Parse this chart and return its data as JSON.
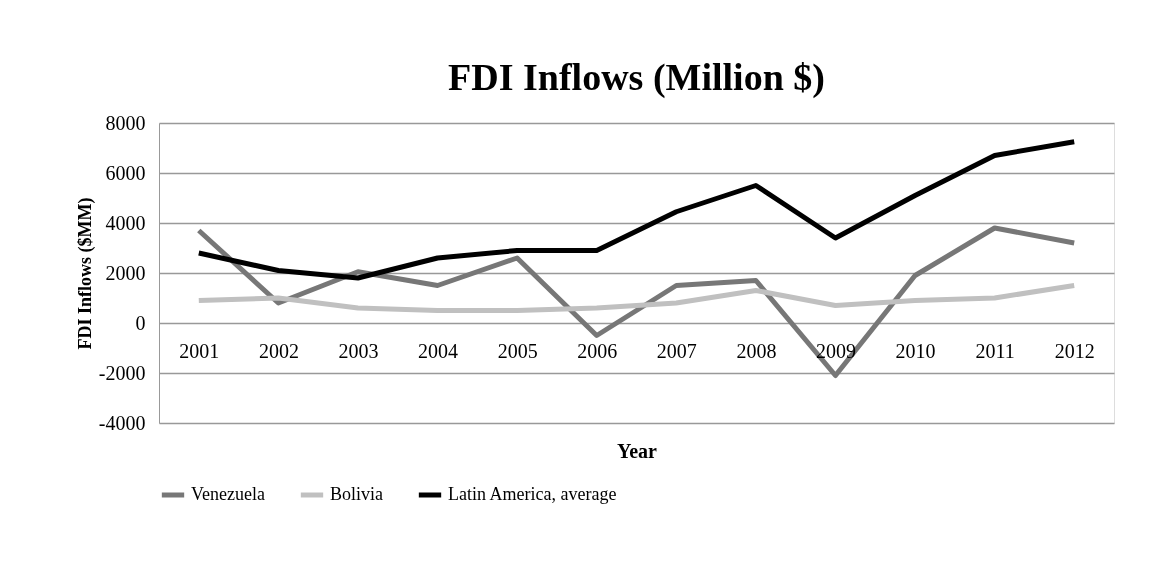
{
  "chart_data": {
    "type": "line",
    "title": "FDI Inflows (Million $)",
    "xlabel": "Year",
    "ylabel": "FDI Inflows ($MM)",
    "categories": [
      "2001",
      "2002",
      "2003",
      "2004",
      "2005",
      "2006",
      "2007",
      "2008",
      "2009",
      "2010",
      "2011",
      "2012"
    ],
    "series": [
      {
        "name": "Venezuela",
        "color": "#777777",
        "values": [
          3700,
          800,
          2050,
          1500,
          2600,
          -500,
          1500,
          1700,
          -2100,
          1900,
          3800,
          3200
        ]
      },
      {
        "name": "Bolivia",
        "color": "#c0c0c0",
        "values": [
          900,
          1000,
          600,
          500,
          500,
          600,
          800,
          1300,
          700,
          900,
          1000,
          1500
        ]
      },
      {
        "name": "Latin America, average",
        "color": "#000000",
        "values": [
          2800,
          2100,
          1800,
          2600,
          2900,
          2900,
          4450,
          5500,
          3400,
          5100,
          6700,
          7250
        ]
      }
    ],
    "ylim": [
      -4000,
      8000
    ],
    "yticks": [
      -4000,
      -2000,
      0,
      2000,
      4000,
      6000,
      8000
    ],
    "grid": "y",
    "legend": "bottom",
    "marker": "none",
    "line_style": "solid"
  }
}
